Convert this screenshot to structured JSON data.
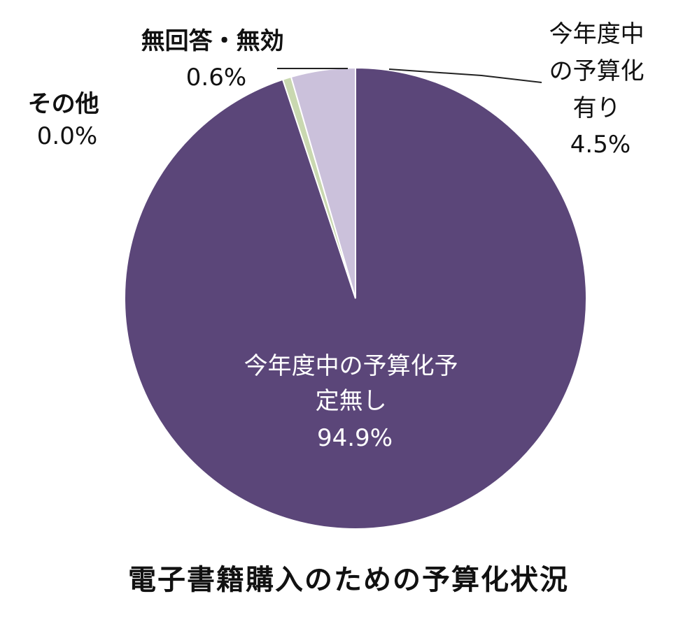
{
  "chart_data": {
    "type": "pie",
    "title": "電子書籍購入のための予算化状況",
    "start_angle_deg": 0,
    "direction": "clockwise",
    "slices": [
      {
        "key": "unbudgeted",
        "label_lines": [
          "今年度中の予算化予",
          "定無し"
        ],
        "value": 94.9,
        "value_label": "94.9%",
        "color": "#5b4679"
      },
      {
        "key": "other",
        "label_lines": [
          "その他"
        ],
        "value": 0.0,
        "value_label": "0.0%",
        "color": "#8fa05a"
      },
      {
        "key": "no-answer",
        "label_lines": [
          "無回答・無効"
        ],
        "value": 0.6,
        "value_label": "0.6%",
        "color": "#c9d8b0"
      },
      {
        "key": "budgeted",
        "label_lines": [
          "今年度中",
          "の予算化",
          "有り"
        ],
        "value": 4.5,
        "value_label": "4.5%",
        "color": "#cbc1db"
      }
    ]
  }
}
